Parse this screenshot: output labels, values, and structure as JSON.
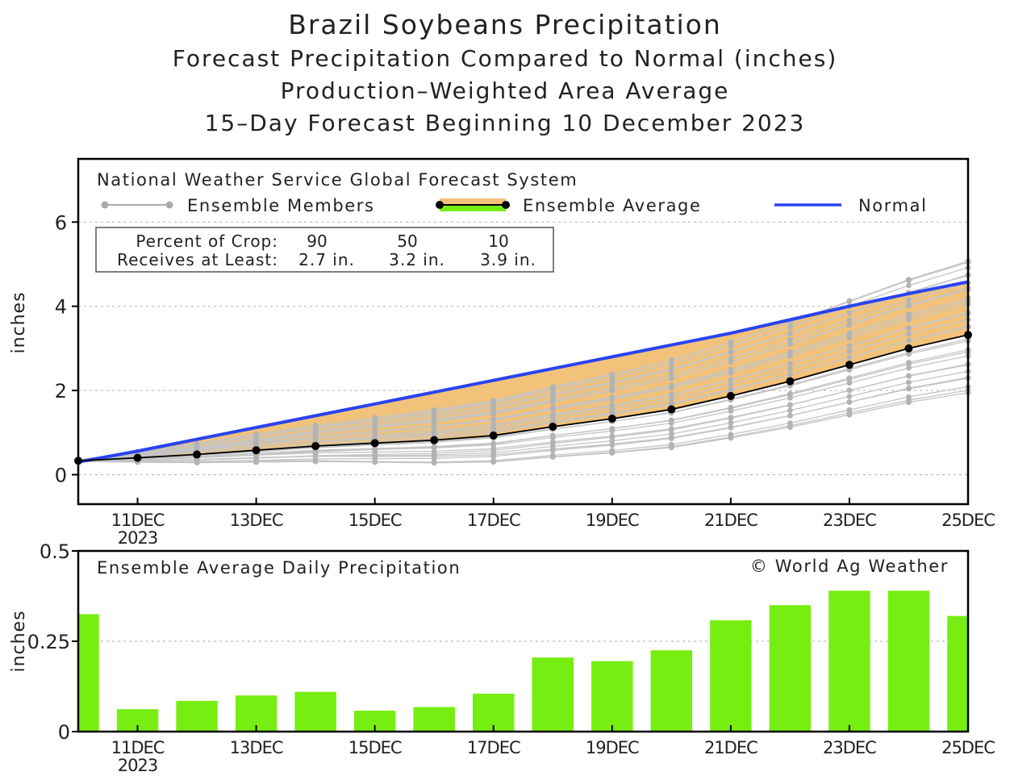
{
  "title": "Brazil Soybeans Precipitation",
  "subtitle1": "Forecast Precipitation Compared to Normal (inches)",
  "subtitle2": "Production–Weighted Area Average",
  "subtitle3": "15–Day Forecast Beginning 10 December 2023",
  "top_panel": {
    "header": "National Weather Service Global Forecast System",
    "legend_members": "Ensemble Members",
    "legend_average": "Ensemble Average",
    "legend_normal": "Normal",
    "crop_label1": "Percent of Crop:",
    "crop_label2": "Receives at Least:",
    "crop_percents": [
      "90",
      "50",
      "10"
    ],
    "crop_amounts": [
      "2.7 in.",
      "3.2 in.",
      "3.9 in."
    ],
    "ylabel": "inches",
    "yticks": [
      "0",
      "2",
      "4",
      "6"
    ]
  },
  "bottom_panel": {
    "header": "Ensemble Average Daily Precipitation",
    "copyright": "© World Ag Weather",
    "ylabel": "inches",
    "yticks": [
      "0",
      "0.25",
      "0.5"
    ]
  },
  "xaxis": {
    "ticks": [
      "11DEC",
      "13DEC",
      "15DEC",
      "17DEC",
      "19DEC",
      "21DEC",
      "23DEC",
      "25DEC"
    ],
    "year": "2023"
  },
  "colors": {
    "normal": "#2a43f0",
    "average": "#000000",
    "band": "#f2c27a",
    "members": "#aaaaaa",
    "bars": "#77ee11"
  },
  "chart_data": [
    {
      "type": "line",
      "title": "Forecast Precipitation Compared to Normal (inches)",
      "xlabel": "",
      "ylabel": "inches",
      "x": [
        "10DEC",
        "11DEC",
        "12DEC",
        "13DEC",
        "14DEC",
        "15DEC",
        "16DEC",
        "17DEC",
        "18DEC",
        "19DEC",
        "20DEC",
        "21DEC",
        "22DEC",
        "23DEC",
        "24DEC",
        "25DEC"
      ],
      "xlim": [
        10,
        25
      ],
      "ylim": [
        -0.7,
        7.5
      ],
      "grid": true,
      "series": [
        {
          "name": "Normal",
          "values": [
            0.3,
            0.56,
            0.84,
            1.12,
            1.4,
            1.68,
            1.96,
            2.24,
            2.52,
            2.8,
            3.08,
            3.36,
            3.68,
            4.0,
            4.3,
            4.58
          ]
        },
        {
          "name": "Ensemble Average",
          "values": [
            0.33,
            0.4,
            0.48,
            0.58,
            0.68,
            0.75,
            0.82,
            0.93,
            1.14,
            1.33,
            1.55,
            1.87,
            2.22,
            2.61,
            3.0,
            3.32
          ]
        }
      ]
    },
    {
      "type": "bar",
      "title": "Ensemble Average Daily Precipitation",
      "xlabel": "",
      "ylabel": "inches",
      "categories": [
        "10DEC",
        "11DEC",
        "12DEC",
        "13DEC",
        "14DEC",
        "15DEC",
        "16DEC",
        "17DEC",
        "18DEC",
        "19DEC",
        "20DEC",
        "21DEC",
        "22DEC",
        "23DEC",
        "24DEC",
        "25DEC"
      ],
      "values": [
        0.325,
        0.062,
        0.085,
        0.1,
        0.11,
        0.058,
        0.068,
        0.105,
        0.205,
        0.195,
        0.225,
        0.308,
        0.35,
        0.39,
        0.39,
        0.32
      ],
      "ylim": [
        0,
        0.5
      ],
      "grid": true
    }
  ]
}
